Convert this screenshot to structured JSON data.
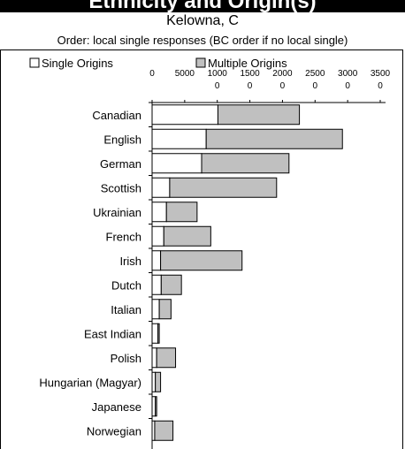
{
  "header": {
    "banner_text": "Ethnicity and Origin(s)",
    "subtitle": "Kelowna, C",
    "order_note": "Order: local single responses (BC order if no local single)"
  },
  "colors": {
    "single_fill": "#ffffff",
    "multiple_fill": "#c0c0c0",
    "stroke": "#000000"
  },
  "chart_data": {
    "type": "bar",
    "orientation": "horizontal",
    "stacked": true,
    "categories": [
      "Canadian",
      "English",
      "German",
      "Scottish",
      "Ukrainian",
      "French",
      "Irish",
      "Dutch",
      "Italian",
      "East Indian",
      "Polish",
      "Hungarian (Magyar)",
      "Japanese",
      "Norwegian"
    ],
    "series": [
      {
        "name": "Single Origins",
        "values": [
          10100,
          8300,
          7600,
          2700,
          2200,
          1800,
          1300,
          1400,
          1100,
          900,
          700,
          500,
          500,
          400
        ]
      },
      {
        "name": "Multiple Origins",
        "values": [
          12500,
          20900,
          13400,
          16400,
          4700,
          7200,
          12500,
          3100,
          1800,
          200,
          2900,
          800,
          200,
          2800
        ]
      }
    ],
    "xlim": [
      0,
      35000
    ],
    "xtick_labels": [
      "0",
      "5000",
      "1000\n0",
      "1500\n0",
      "2000\n0",
      "2500\n0",
      "3000\n0",
      "3500\n0"
    ],
    "legend_position": "top",
    "grid": false
  }
}
